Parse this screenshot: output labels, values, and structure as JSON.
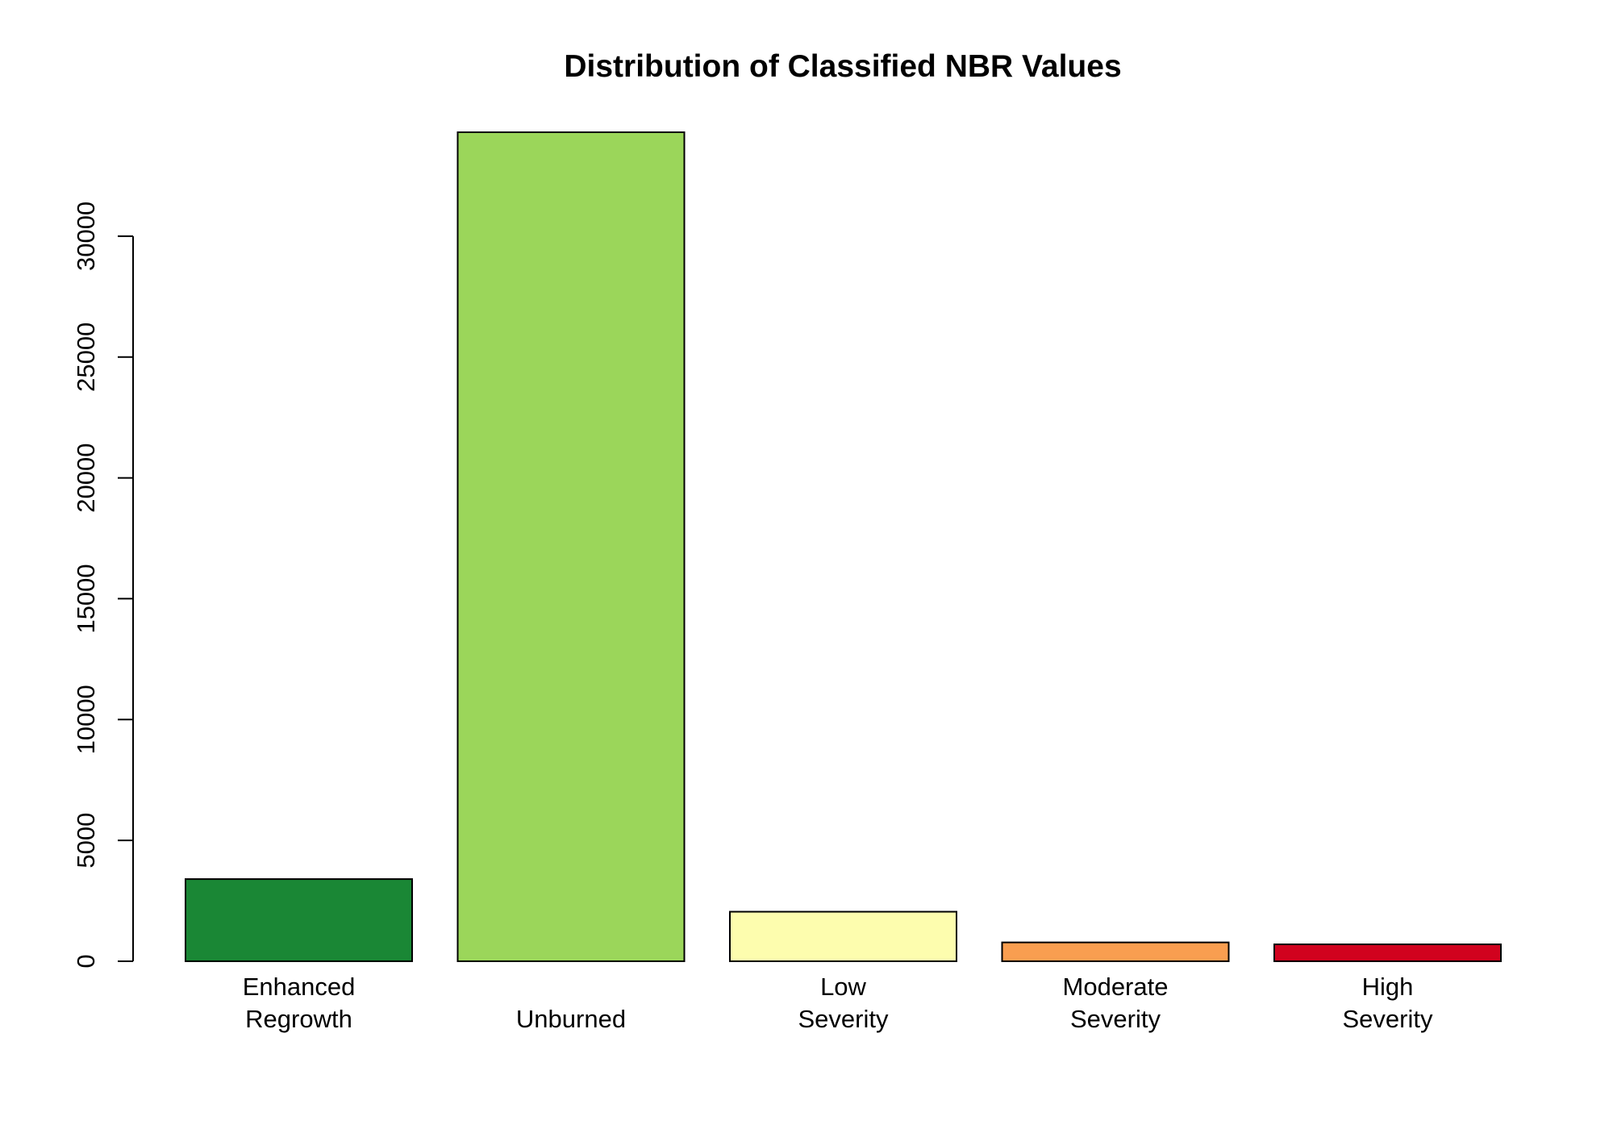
{
  "chart_data": {
    "type": "bar",
    "title": "Distribution of Classified NBR Values",
    "xlabel": "",
    "ylabel": "",
    "categories": [
      [
        "Enhanced",
        "Regrowth"
      ],
      [
        "Unburned"
      ],
      [
        "Low",
        "Severity"
      ],
      [
        "Moderate",
        "Severity"
      ],
      [
        "High",
        "Severity"
      ]
    ],
    "values": [
      3400,
      34300,
      2050,
      780,
      700
    ],
    "colors": [
      "#1a8735",
      "#9bd65a",
      "#fdfdae",
      "#f99e50",
      "#d1021e"
    ],
    "yticks": [
      0,
      5000,
      10000,
      15000,
      20000,
      25000,
      30000
    ],
    "ylim": [
      0,
      34300
    ],
    "grid": false,
    "legend": "none"
  }
}
